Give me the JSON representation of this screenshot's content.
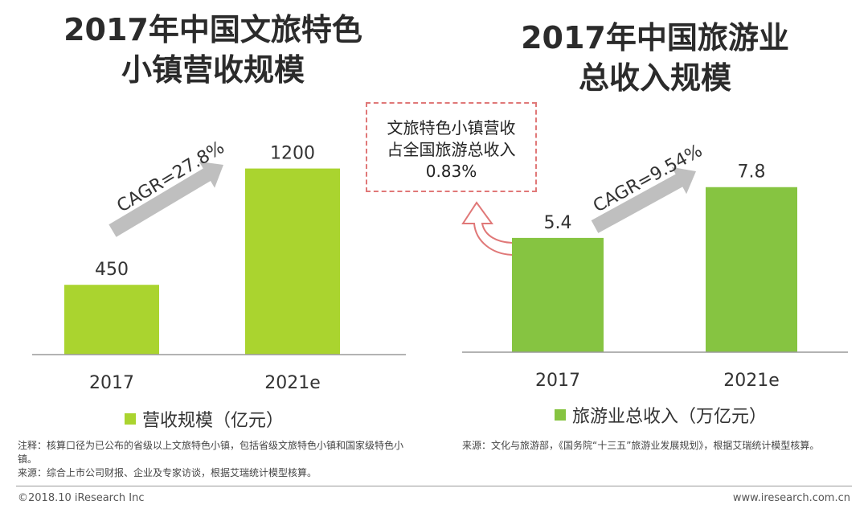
{
  "left_title": [
    "2017年中国文旅特色",
    "小镇营收规模"
  ],
  "right_title": [
    "2017年中国旅游业",
    "总收入规模"
  ],
  "callout": [
    "文旅特色小镇营收",
    "占全国旅游总收入",
    "0.83%"
  ],
  "colors": {
    "left_bar": "#aad42f",
    "right_bar": "#86c441",
    "callout": "#e07878",
    "arrow": "#bfbfbf"
  },
  "chart_data": [
    {
      "type": "bar",
      "categories": [
        "2017",
        "2021e"
      ],
      "values": [
        450,
        1200
      ],
      "value_labels": [
        "450",
        "1200"
      ],
      "legend": "营收规模（亿元）",
      "annotation": "CAGR=27.8%",
      "ylim": [
        0,
        1400
      ]
    },
    {
      "type": "bar",
      "categories": [
        "2017",
        "2021e"
      ],
      "values": [
        5.4,
        7.8
      ],
      "value_labels": [
        "5.4",
        "7.8"
      ],
      "legend": "旅游业总收入（万亿元）",
      "annotation": "CAGR=9.54%",
      "ylim": [
        0,
        9.5
      ]
    }
  ],
  "notes": {
    "left": [
      "注释：核算口径为已公布的省级以上文旅特色小镇，包括省级文旅特色小镇和国家级特色小镇。",
      "来源：综合上市公司财报、企业及专家访谈，根据艾瑞统计模型核算。"
    ],
    "right": [
      "来源：文化与旅游部，《国务院“十三五”旅游业发展规划》，根据艾瑞统计模型核算。"
    ]
  },
  "footer": {
    "left": "©2018.10 iResearch Inc",
    "right": "www.iresearch.com.cn"
  }
}
